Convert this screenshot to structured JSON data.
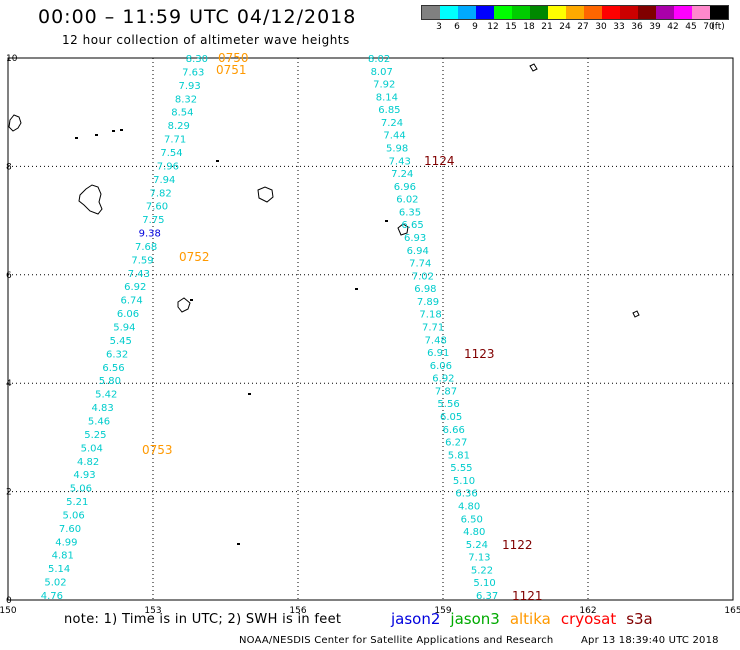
{
  "title": "00:00 – 11:59 UTC 04/12/2018",
  "subtitle": "12 hour collection of altimeter wave heights",
  "colorbar": {
    "colors": [
      "#808080",
      "#00ffff",
      "#00aaff",
      "#0000ff",
      "#00ff00",
      "#00cc00",
      "#008800",
      "#ffff00",
      "#ffaa00",
      "#ff6600",
      "#ff0000",
      "#cc0000",
      "#800000",
      "#aa00aa",
      "#ff00ff",
      "#ff88cc",
      "#000000"
    ],
    "labels": [
      "3",
      "6",
      "9",
      "12",
      "15",
      "18",
      "21",
      "24",
      "27",
      "30",
      "33",
      "36",
      "39",
      "42",
      "45",
      "70",
      "(ft)"
    ]
  },
  "axes": {
    "x_ticks": [
      "150",
      "153",
      "156",
      "159",
      "162",
      "165"
    ],
    "y_ticks": [
      "0",
      "2",
      "4",
      "6",
      "8",
      "10"
    ]
  },
  "tracks": {
    "west": {
      "color": "#00cccc",
      "values": [
        "8.30",
        "7.63",
        "7.93",
        "8.32",
        "8.54",
        "8.29",
        "7.71",
        "7.54",
        "7.96",
        "7.94",
        "7.82",
        "7.60",
        "7.75",
        "9.38",
        "7.68",
        "7.59",
        "7.43",
        "6.92",
        "6.74",
        "6.06",
        "5.94",
        "5.45",
        "6.32",
        "6.56",
        "5.80",
        "5.42",
        "4.83",
        "5.46",
        "5.25",
        "5.04",
        "4.82",
        "4.93",
        "5.06",
        "5.21",
        "5.06",
        "7.60",
        "4.99",
        "4.81",
        "5.14",
        "5.02",
        "4.76"
      ]
    },
    "east": {
      "color": "#00cccc",
      "values": [
        "8.02",
        "8.07",
        "7.92",
        "8.14",
        "6.85",
        "7.24",
        "7.44",
        "5.98",
        "7.43",
        "7.24",
        "6.96",
        "6.02",
        "6.35",
        "6.65",
        "6.93",
        "6.94",
        "7.74",
        "7.02",
        "6.98",
        "7.89",
        "7.18",
        "7.71",
        "7.48",
        "6.91",
        "6.06",
        "6.92",
        "7.87",
        "5.56",
        "6.05",
        "6.66",
        "6.27",
        "5.81",
        "5.55",
        "5.10",
        "6.36",
        "4.80",
        "6.50",
        "4.80",
        "5.24",
        "7.13",
        "5.22",
        "5.10",
        "6.37"
      ]
    }
  },
  "time_labels": [
    {
      "text": "0750",
      "color": "#ff9900"
    },
    {
      "text": "0751",
      "color": "#ff9900"
    },
    {
      "text": "0752",
      "color": "#ff9900"
    },
    {
      "text": "0753",
      "color": "#ff9900"
    },
    {
      "text": "1124",
      "color": "#800000"
    },
    {
      "text": "1123",
      "color": "#800000"
    },
    {
      "text": "1122",
      "color": "#800000"
    },
    {
      "text": "1121",
      "color": "#800000"
    }
  ],
  "note": "note: 1) Time is in UTC; 2) SWH is in feet",
  "legend": [
    {
      "text": "jason2",
      "color": "#0000dd"
    },
    {
      "text": "jason3",
      "color": "#00aa00"
    },
    {
      "text": "altika",
      "color": "#ff9900"
    },
    {
      "text": "cryosat",
      "color": "#ff0000"
    },
    {
      "text": "s3a",
      "color": "#800000"
    }
  ],
  "credit": "NOAA/NESDIS Center for Satellite Applications and Research",
  "timestamp": "Apr 13 18:39:40 UTC 2018"
}
